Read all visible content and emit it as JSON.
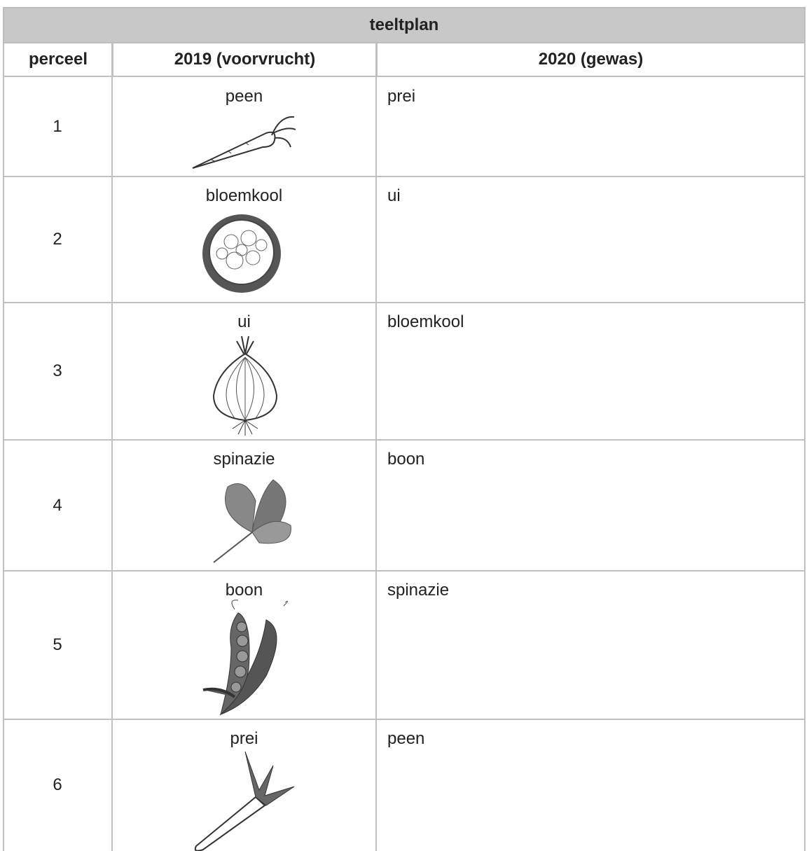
{
  "header": {
    "title": "teeltplan"
  },
  "table": {
    "columns": [
      "perceel",
      "2019 (voorvrucht)",
      "2020 (gewas)"
    ],
    "rows": [
      [
        "1",
        "peen",
        "prei"
      ],
      [
        "2",
        "bloemkool",
        "ui"
      ],
      [
        "3",
        "ui",
        "bloemkool"
      ],
      [
        "4",
        "spinazie",
        "boon"
      ],
      [
        "5",
        "boon",
        "spinazie"
      ],
      [
        "6",
        "prei",
        "peen"
      ]
    ]
  }
}
